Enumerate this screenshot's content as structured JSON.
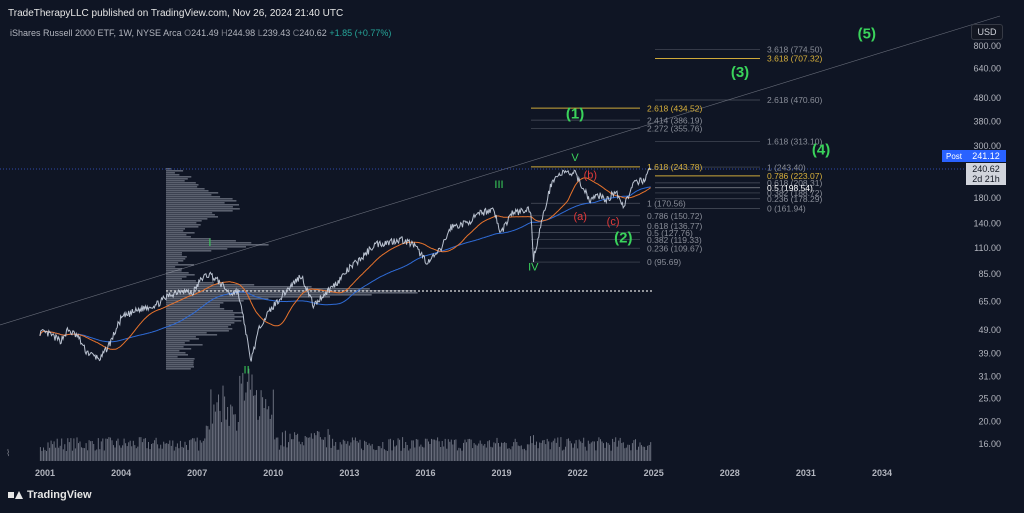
{
  "header": {
    "publisher_line": "TradeTherapyLLC published on TradingView.com, Nov 26, 2024 21:40 UTC",
    "symbol_title": "iShares Russell 2000 ETF, 1W, NYSE Arca",
    "ohlc": [
      {
        "key": "O",
        "value": "241.49"
      },
      {
        "key": "H",
        "value": "244.98"
      },
      {
        "key": "L",
        "value": "239.43"
      },
      {
        "key": "C",
        "value": "240.62"
      }
    ],
    "change": "+1.85 (+0.77%)"
  },
  "toolbar": {
    "currency_label": "USD"
  },
  "price_scale": {
    "post_label": "Post",
    "post_price": "241.12",
    "last_price": "240.62",
    "countdown": "2d 21h"
  },
  "brand": {
    "name": "TradingView"
  },
  "colors": {
    "background": "#0f1524",
    "price_line": "#c9d1e0",
    "ma_fast": "#e8732c",
    "ma_slow": "#2f6bd6",
    "wave_green": "#3ad35b",
    "wave_red": "#e03a3a",
    "fib_gold": "#d9b13b",
    "fib_grey": "#8a8e99",
    "volume": "#a9aebb",
    "accent_blue": "#2962ff"
  },
  "chart_data": {
    "type": "line",
    "title": "iShares Russell 2000 ETF, 1W, NYSE Arca",
    "y_scale": "log",
    "ylim": [
      13.5,
      870
    ],
    "xlim": [
      2000.5,
      2036.5
    ],
    "x_ticks": [
      "2001",
      "2004",
      "2007",
      "2010",
      "2013",
      "2016",
      "2019",
      "2022",
      "2025",
      "2028",
      "2031",
      "2034"
    ],
    "y_ticks": [
      "800.00",
      "640.00",
      "480.00",
      "380.00",
      "300.00",
      "240.00",
      "180.00",
      "140.00",
      "110.00",
      "85.00",
      "65.00",
      "49.00",
      "39.00",
      "31.00",
      "25.00",
      "20.00",
      "16.00"
    ],
    "series": [
      {
        "x": [
          2000.8,
          2001.2,
          2001.6,
          2001.9,
          2002.3,
          2002.6,
          2002.9,
          2003.2,
          2003.6,
          2004.0,
          2004.4,
          2004.9,
          2005.4,
          2005.9,
          2006.4,
          2006.8,
          2007.2,
          2007.5,
          2007.9,
          2008.3,
          2008.6,
          2008.9,
          2009.1,
          2009.5,
          2010.0,
          2010.5,
          2011.1,
          2011.6,
          2011.9,
          2012.5,
          2013.0,
          2013.5,
          2014.0,
          2014.5,
          2015.0,
          2015.5,
          2016.1,
          2016.6,
          2017.0,
          2017.6,
          2018.2,
          2018.7,
          2018.95,
          2019.4,
          2019.9,
          2020.15,
          2020.25,
          2020.6,
          2021.0,
          2021.4,
          2021.9,
          2022.2,
          2022.5,
          2022.8,
          2023.2,
          2023.5,
          2023.8,
          2024.2,
          2024.6,
          2024.9
        ],
        "values": [
          48,
          47,
          44,
          49,
          46,
          40,
          38,
          37,
          44,
          55,
          58,
          61,
          63,
          69,
          73,
          70,
          82,
          85,
          78,
          70,
          72,
          50,
          36,
          52,
          62,
          72,
          84,
          62,
          68,
          78,
          90,
          100,
          114,
          116,
          120,
          114,
          95,
          108,
          135,
          140,
          155,
          162,
          126,
          155,
          158,
          162,
          98,
          145,
          215,
          230,
          228,
          200,
          175,
          185,
          176,
          195,
          165,
          205,
          215,
          240.6
        ]
      }
    ],
    "wave_labels": [
      {
        "text": "II",
        "color": "green"
      },
      {
        "text": "I",
        "color": "green"
      },
      {
        "text": "III",
        "color": "green"
      },
      {
        "text": "IV",
        "color": "green"
      },
      {
        "text": "V",
        "color": "green"
      },
      {
        "text": "(1)",
        "color": "green"
      },
      {
        "text": "(2)",
        "color": "green"
      },
      {
        "text": "(3)",
        "color": "green"
      },
      {
        "text": "(4)",
        "color": "green"
      },
      {
        "text": "(5)",
        "color": "green"
      },
      {
        "text": "(a)",
        "color": "red"
      },
      {
        "text": "(b)",
        "color": "red"
      },
      {
        "text": "(c)",
        "color": "red"
      }
    ],
    "fib_set_1": [
      {
        "label": "2.618 (434.52)",
        "price": 434.52,
        "highlight": true
      },
      {
        "label": "2.414 (386.19)",
        "price": 386.19
      },
      {
        "label": "2.272 (355.76)",
        "price": 355.76
      },
      {
        "label": "1.618 (243.78)",
        "price": 243.78,
        "highlight": true
      },
      {
        "label": "1 (170.56)",
        "price": 170.56
      },
      {
        "label": "0.786 (150.72)",
        "price": 150.72
      },
      {
        "label": "0.618 (136.77)",
        "price": 136.77
      },
      {
        "label": "0.5 (127.76)",
        "price": 127.76
      },
      {
        "label": "0.382 (119.33)",
        "price": 119.33
      },
      {
        "label": "0.236 (109.67)",
        "price": 109.67
      },
      {
        "label": "0 (95.69)",
        "price": 95.69
      }
    ],
    "fib_set_2": [
      {
        "label": "3.618 (774.50)",
        "price": 774.5
      },
      {
        "label": "3.618 (707.32)",
        "price": 707.32,
        "highlight": true
      },
      {
        "label": "2.618 (470.60)",
        "price": 470.6
      },
      {
        "label": "1.618 (313.10)",
        "price": 313.1
      },
      {
        "label": "1 (243.40)",
        "price": 243.4
      },
      {
        "label": "0.786 (223.07)",
        "price": 223.07,
        "highlight": true
      },
      {
        "label": "0.618 (208.31)",
        "price": 208.31
      },
      {
        "label": "0.5 (198.54)",
        "price": 198.54,
        "bright": true
      },
      {
        "label": "0.382 (188.72)",
        "price": 188.72
      },
      {
        "label": "0.236 (178.29)",
        "price": 178.29
      },
      {
        "label": "0 (161.94)",
        "price": 161.94
      }
    ],
    "grid": false,
    "legend": "top-left"
  }
}
